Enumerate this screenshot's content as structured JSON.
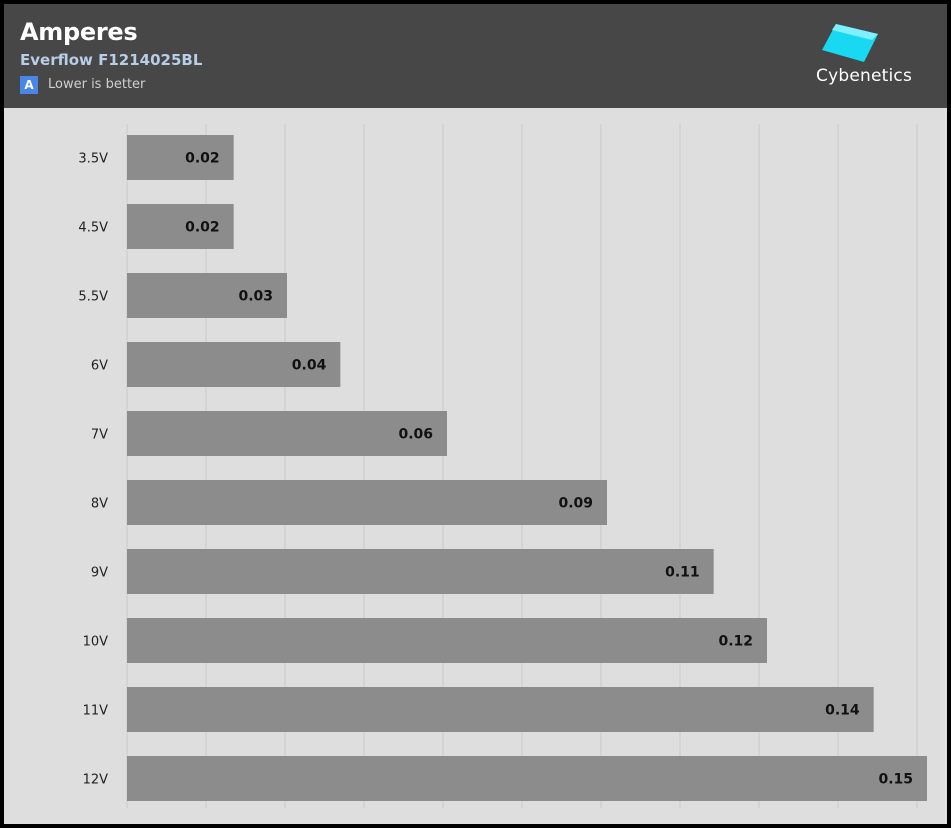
{
  "header": {
    "title": "Amperes",
    "subtitle": "Everflow F1214025BL",
    "note_badge": "A",
    "note": "Lower is better",
    "logo_text": "Cybenetics"
  },
  "colors": {
    "header_bg": "#474747",
    "plot_bg": "#dedede",
    "bar": "#8c8c8c",
    "logo_cyan": "#19d8f2",
    "badge_blue": "#4a86e8"
  },
  "chart_data": {
    "type": "bar",
    "orientation": "horizontal",
    "title": "Amperes",
    "subtitle": "Everflow F1214025BL",
    "categories": [
      "3.5V",
      "4.5V",
      "5.5V",
      "6V",
      "7V",
      "8V",
      "9V",
      "10V",
      "11V",
      "12V"
    ],
    "values": [
      0.02,
      0.02,
      0.03,
      0.04,
      0.06,
      0.09,
      0.11,
      0.12,
      0.14,
      0.15
    ],
    "labels": [
      "0.02",
      "0.02",
      "0.03",
      "0.04",
      "0.06",
      "0.09",
      "0.11",
      "0.12",
      "0.14",
      "0.15"
    ],
    "xlim": [
      0,
      0.15
    ],
    "grid": true,
    "xlabel": "",
    "ylabel": ""
  }
}
